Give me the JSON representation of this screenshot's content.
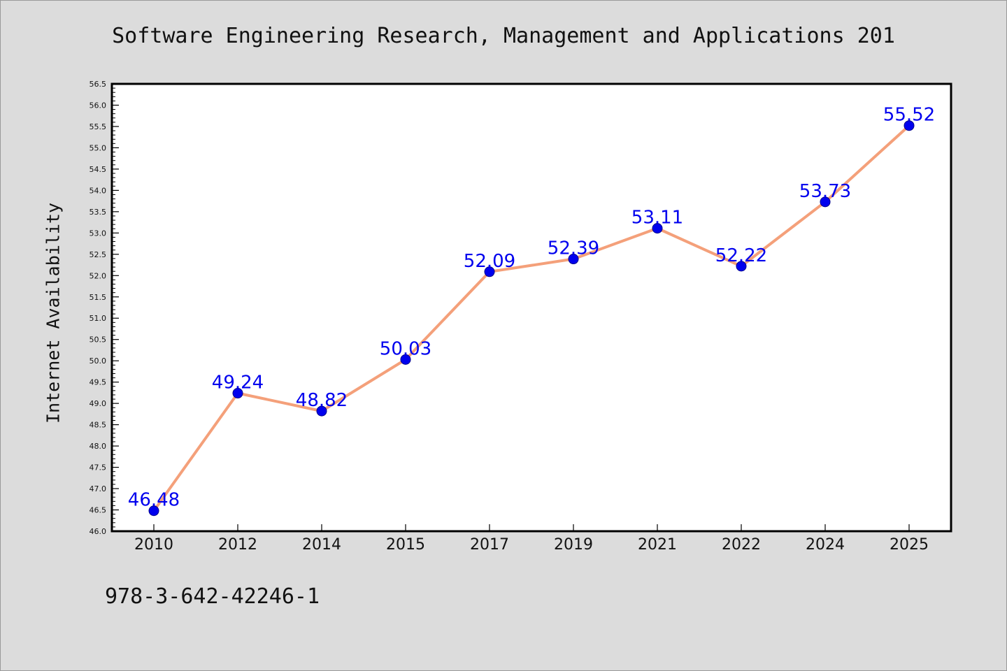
{
  "chart_data": {
    "type": "line",
    "title": "Software Engineering Research, Management and Applications 201",
    "xlabel": "",
    "ylabel": "Internet Availability",
    "categories": [
      "2010",
      "2012",
      "2014",
      "2015",
      "2017",
      "2019",
      "2021",
      "2022",
      "2024",
      "2025"
    ],
    "series": [
      {
        "values": [
          46.48,
          49.24,
          48.82,
          50.03,
          52.09,
          52.39,
          53.11,
          52.22,
          53.73,
          55.52
        ],
        "labels": [
          "46.48",
          "49.24",
          "48.82",
          "50.03",
          "52.09",
          "52.39",
          "53.11",
          "52.22",
          "53.73",
          "55.52"
        ],
        "line_color": "#f4a07a",
        "marker_color": "#0000ee"
      }
    ],
    "ylim": [
      46.0,
      56.5
    ],
    "yticks": [
      "46.0",
      "46.5",
      "47.0",
      "47.5",
      "48.0",
      "48.5",
      "49.0",
      "49.5",
      "50.0",
      "50.5",
      "51.0",
      "51.5",
      "52.0",
      "52.5",
      "53.0",
      "53.5",
      "54.0",
      "54.5",
      "55.0",
      "55.5",
      "56.0",
      "56.5"
    ],
    "grid": false,
    "legend": "none",
    "background": "#dcdcdc",
    "plot_background": "#ffffff"
  },
  "footnote": "978-3-642-42246-1"
}
